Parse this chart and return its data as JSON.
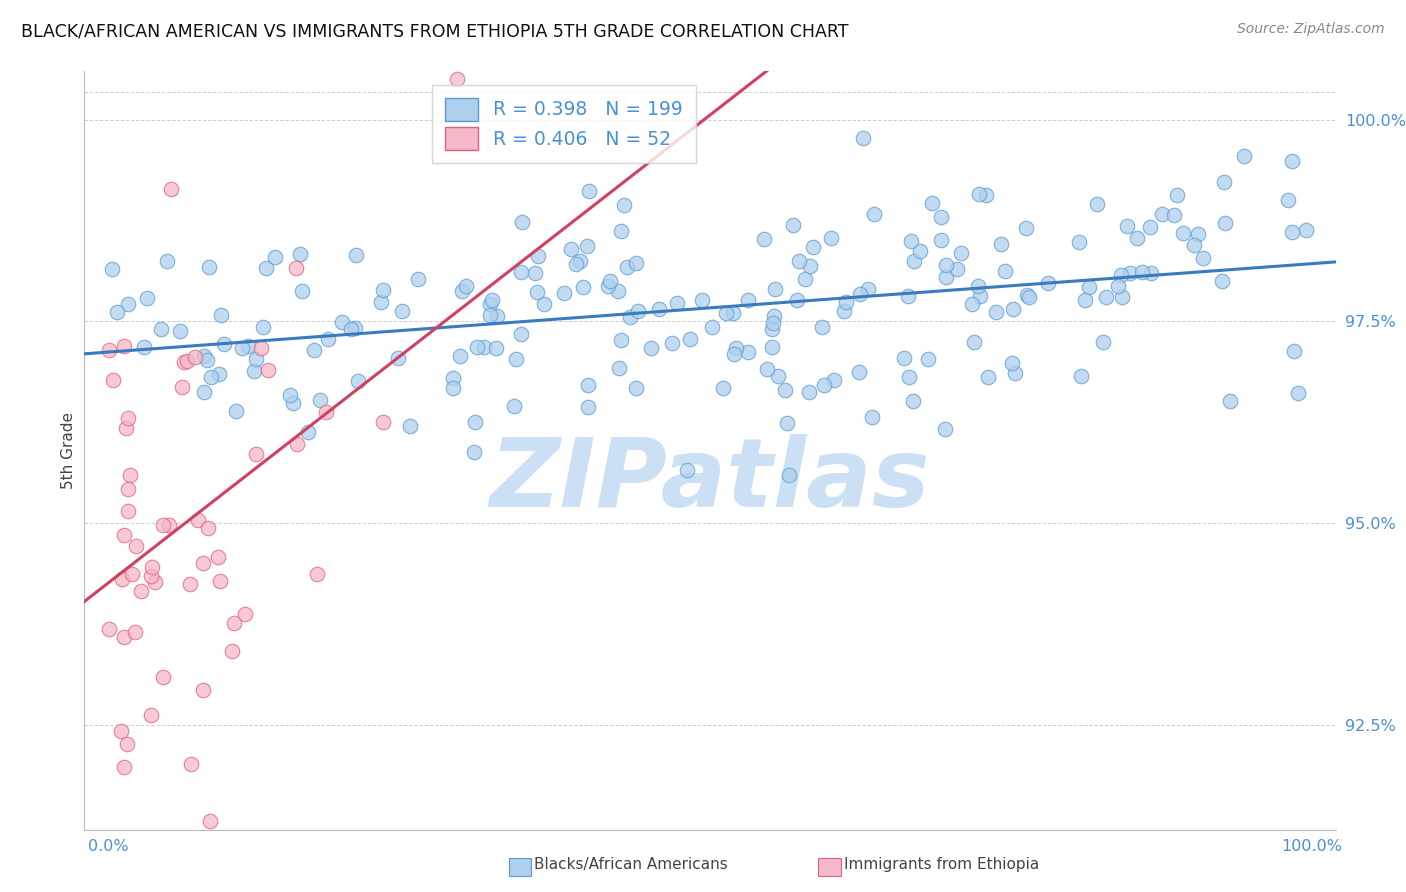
{
  "title": "BLACK/AFRICAN AMERICAN VS IMMIGRANTS FROM ETHIOPIA 5TH GRADE CORRELATION CHART",
  "source": "Source: ZipAtlas.com",
  "ylabel": "5th Grade",
  "legend_label1": "Blacks/African Americans",
  "legend_label2": "Immigrants from Ethiopia",
  "R1": 0.398,
  "N1": 199,
  "R2": 0.406,
  "N2": 52,
  "blue_fill": "#aecfed",
  "blue_edge": "#5b9bd5",
  "pink_fill": "#f4b8c8",
  "pink_edge": "#e06080",
  "blue_line": "#3a7abf",
  "pink_line": "#d04060",
  "watermark_color": "#cce0f5",
  "watermark_text": "ZIPatlas",
  "axis_color": "#4a90d9",
  "grid_color": "#bbbbbb",
  "title_color": "#111111",
  "source_color": "#888888",
  "bg_color": "#ffffff",
  "xlim": [
    -2.0,
    102.0
  ],
  "ylim": [
    91.2,
    100.6
  ],
  "yticks": [
    92.5,
    95.0,
    97.5,
    100.0
  ],
  "ytick_labels": [
    "92.5%",
    "95.0%",
    "97.5%",
    "100.0%"
  ],
  "xticks": [
    0,
    100
  ],
  "xtick_labels": [
    "0.0%",
    "100.0%"
  ]
}
